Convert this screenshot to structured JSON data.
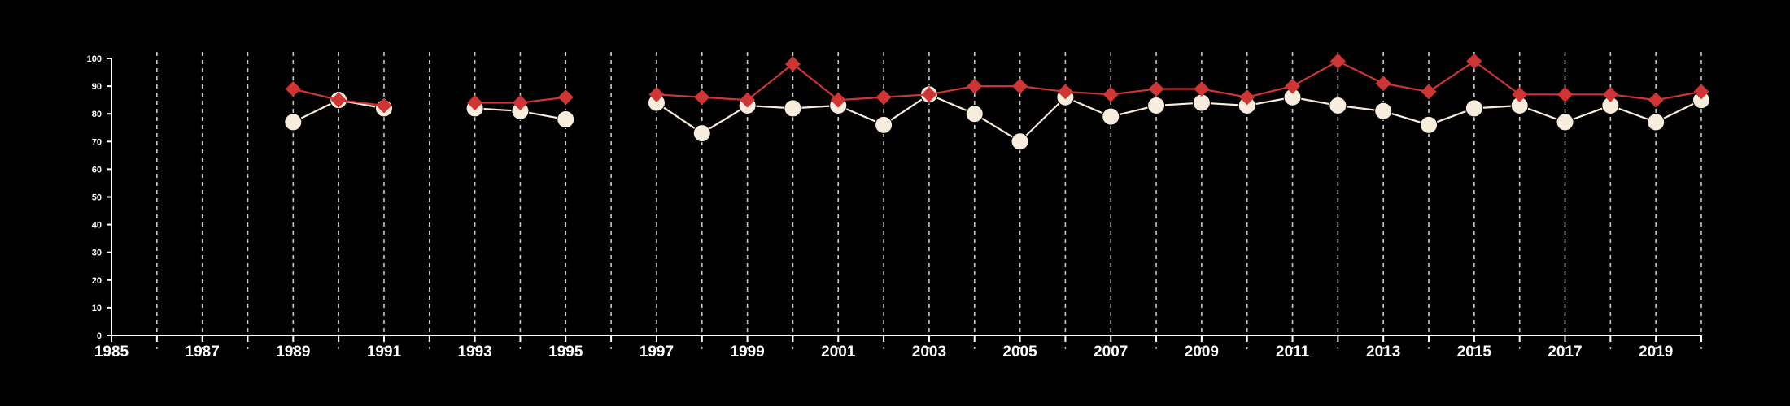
{
  "chart_data": {
    "type": "line",
    "title": "",
    "xlabel": "",
    "ylabel": "",
    "xlim": [
      1985,
      2020
    ],
    "ylim": [
      0,
      100
    ],
    "x_ticks": [
      1985,
      1987,
      1989,
      1991,
      1993,
      1995,
      1997,
      1999,
      2001,
      2003,
      2005,
      2007,
      2009,
      2011,
      2013,
      2015,
      2017,
      2019
    ],
    "y_ticks": [
      0,
      10,
      20,
      30,
      40,
      50,
      60,
      70,
      80,
      90,
      100
    ],
    "grid": "vertical dashed lines at every year",
    "legend": "none",
    "x": [
      1985,
      1986,
      1987,
      1988,
      1989,
      1990,
      1991,
      1992,
      1993,
      1994,
      1995,
      1996,
      1997,
      1998,
      1999,
      2000,
      2001,
      2002,
      2003,
      2004,
      2005,
      2006,
      2007,
      2008,
      2009,
      2010,
      2011,
      2012,
      2013,
      2014,
      2015,
      2016,
      2017,
      2018,
      2019,
      2020
    ],
    "series": [
      {
        "marker": "diamond",
        "color": "#d03535",
        "values": [
          null,
          null,
          null,
          null,
          89,
          85,
          83,
          null,
          84,
          84,
          86,
          null,
          87,
          86,
          85,
          98,
          85,
          86,
          87,
          90,
          90,
          88,
          87,
          89,
          89,
          86,
          90,
          99,
          91,
          88,
          99,
          87,
          87,
          87,
          85,
          88
        ]
      },
      {
        "marker": "circle",
        "color": "#f8ecdc",
        "values": [
          null,
          null,
          null,
          null,
          77,
          85,
          82,
          null,
          82,
          81,
          78,
          null,
          84,
          73,
          83,
          82,
          83,
          76,
          87,
          80,
          70,
          86,
          79,
          83,
          84,
          83,
          86,
          83,
          81,
          76,
          82,
          83,
          77,
          83,
          77,
          85
        ]
      }
    ]
  },
  "colors": {
    "background": "#000000",
    "axis": "#ffffff",
    "grid": "#c8c8c8"
  }
}
